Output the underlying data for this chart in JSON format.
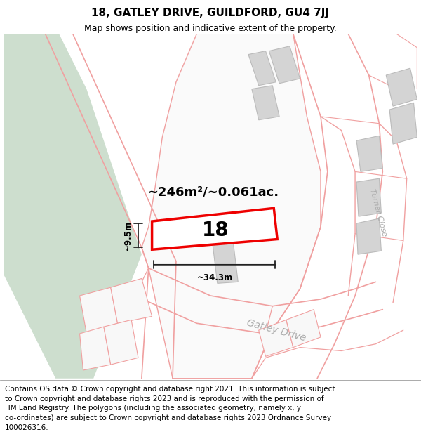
{
  "title": "18, GATLEY DRIVE, GUILDFORD, GU4 7JJ",
  "subtitle": "Map shows position and indicative extent of the property.",
  "copyright": "Contains OS data © Crown copyright and database right 2021. This information is subject\nto Crown copyright and database rights 2023 and is reproduced with the permission of\nHM Land Registry. The polygons (including the associated geometry, namely x, y\nco-ordinates) are subject to Crown copyright and database rights 2023 Ordnance Survey\n100026316.",
  "area_text": "~246m²/~0.061ac.",
  "width_text": "~34.3m",
  "height_text": "~9.5m",
  "property_label": "18",
  "road_label": "Gatley Drive",
  "road_label2": "Turner Close",
  "bg_color": "#ffffff",
  "green_area_color": "#cddece",
  "property_polygon_color": "#ee0000",
  "outline_color": "#f0a0a0",
  "gray_fill": "#d4d4d4",
  "title_fontsize": 11,
  "subtitle_fontsize": 9,
  "copyright_fontsize": 7.5,
  "map_xlim": [
    0,
    600
  ],
  "map_ylim": [
    0,
    500
  ]
}
